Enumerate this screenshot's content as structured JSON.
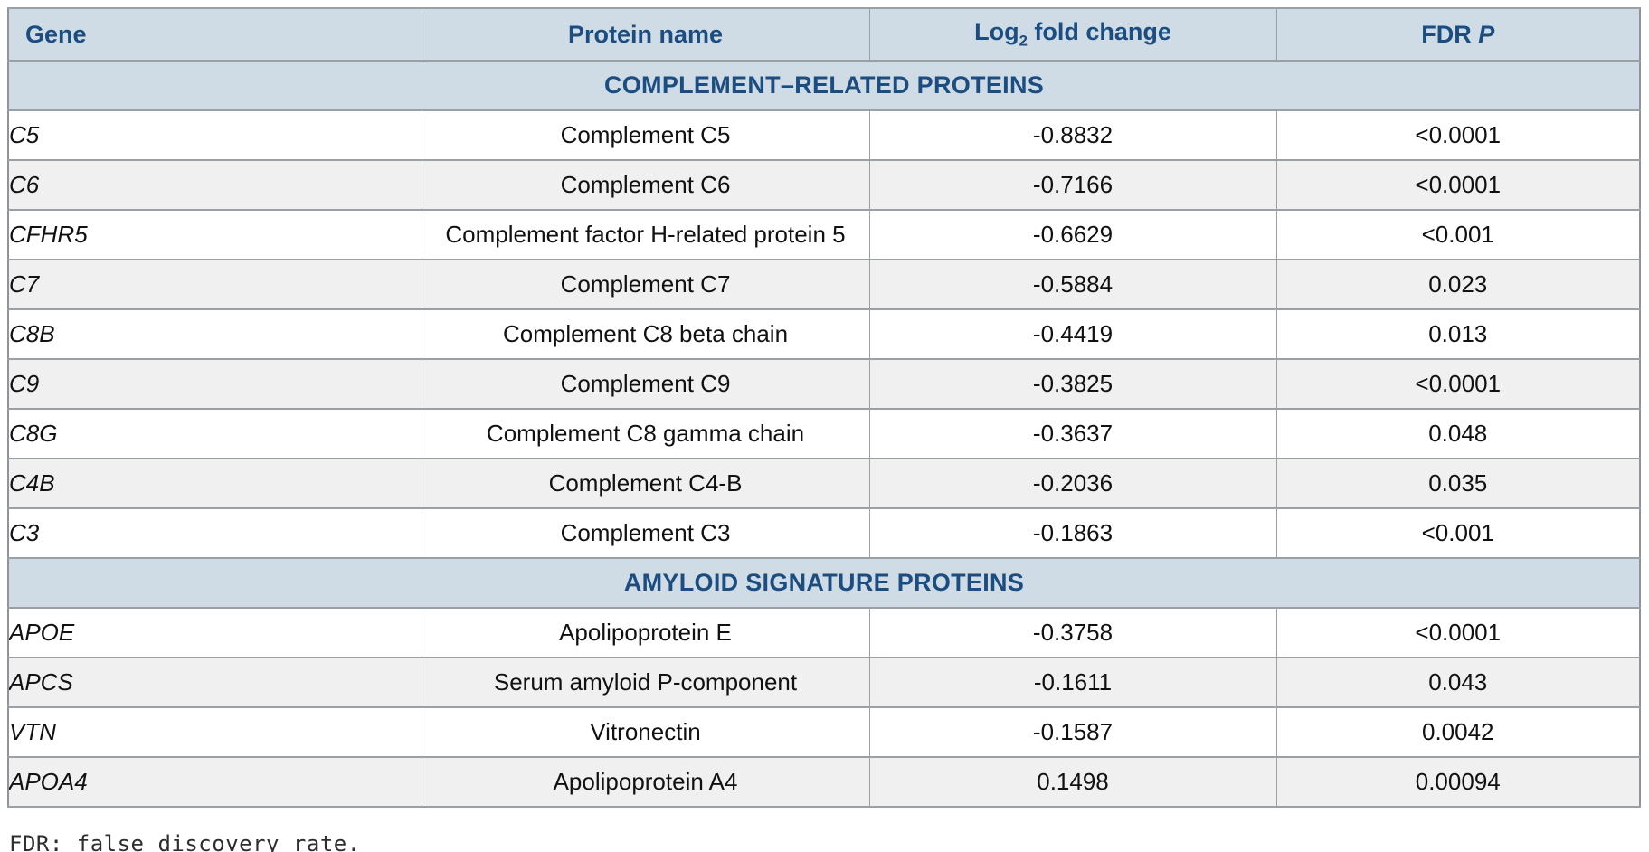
{
  "colors": {
    "band_bg": "#cfdbe5",
    "band_text": "#1b4d80",
    "stripe": "#f0f0f0",
    "grid": "#9aa0a6"
  },
  "table": {
    "headers": {
      "gene": "Gene",
      "protein_name": "Protein name",
      "log2": {
        "prefix": "Log",
        "sub": "2",
        "suffix": " fold change"
      },
      "fdr": {
        "prefix": "FDR ",
        "p_symbol": "P"
      }
    },
    "sections": [
      {
        "title": "COMPLEMENT–RELATED PROTEINS",
        "rows": [
          {
            "gene": "C5",
            "protein": "Complement C5",
            "log2fc": "-0.8832",
            "fdr_p": "<0.0001"
          },
          {
            "gene": "C6",
            "protein": "Complement C6",
            "log2fc": "-0.7166",
            "fdr_p": "<0.0001"
          },
          {
            "gene": "CFHR5",
            "protein": "Complement factor H-related protein 5",
            "log2fc": "-0.6629",
            "fdr_p": "<0.001"
          },
          {
            "gene": "C7",
            "protein": "Complement C7",
            "log2fc": "-0.5884",
            "fdr_p": "0.023"
          },
          {
            "gene": "C8B",
            "protein": "Complement C8 beta chain",
            "log2fc": "-0.4419",
            "fdr_p": "0.013"
          },
          {
            "gene": "C9",
            "protein": "Complement C9",
            "log2fc": "-0.3825",
            "fdr_p": "<0.0001"
          },
          {
            "gene": "C8G",
            "protein": "Complement C8 gamma chain",
            "log2fc": "-0.3637",
            "fdr_p": "0.048"
          },
          {
            "gene": "C4B",
            "protein": "Complement C4-B",
            "log2fc": "-0.2036",
            "fdr_p": "0.035"
          },
          {
            "gene": "C3",
            "protein": "Complement C3",
            "log2fc": "-0.1863",
            "fdr_p": "<0.001"
          }
        ]
      },
      {
        "title": "AMYLOID SIGNATURE PROTEINS",
        "rows": [
          {
            "gene": "APOE",
            "protein": "Apolipoprotein E",
            "log2fc": "-0.3758",
            "fdr_p": "<0.0001"
          },
          {
            "gene": "APCS",
            "protein": "Serum amyloid P-component",
            "log2fc": "-0.1611",
            "fdr_p": "0.043"
          },
          {
            "gene": "VTN",
            "protein": "Vitronectin",
            "log2fc": "-0.1587",
            "fdr_p": "0.0042"
          },
          {
            "gene": "APOA4",
            "protein": "Apolipoprotein A4",
            "log2fc": "0.1498",
            "fdr_p": "0.00094"
          }
        ]
      }
    ]
  },
  "footnote": "FDR: false discovery rate."
}
